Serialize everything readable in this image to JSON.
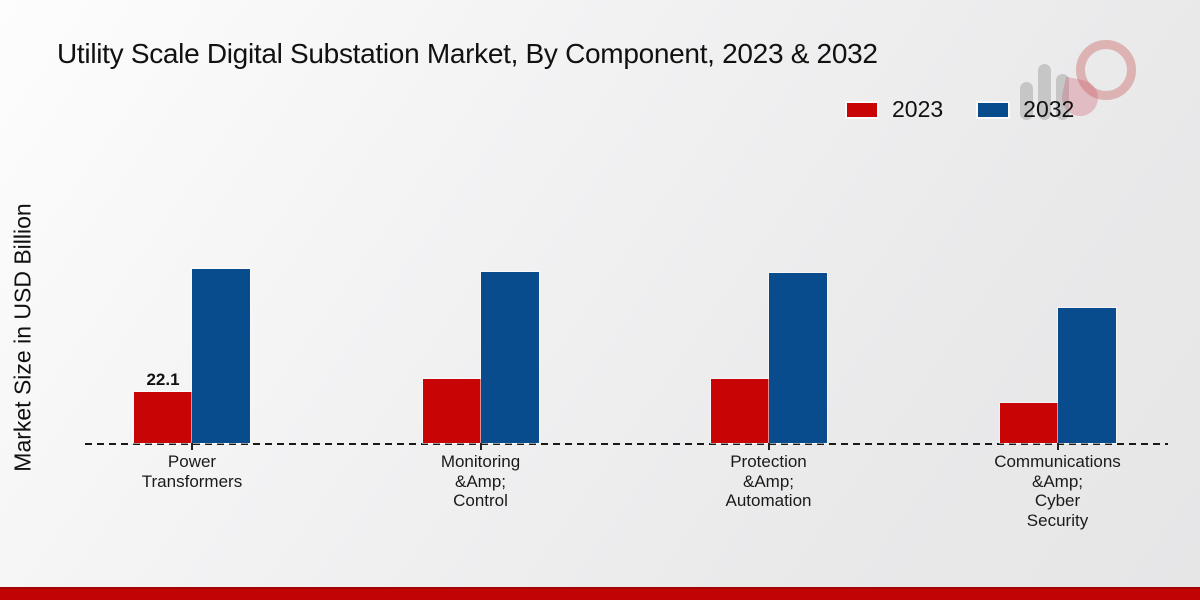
{
  "page": {
    "footer_bar_color": "#c00404",
    "background_color": "#ebebec",
    "baseline_style": "dashed",
    "baseline_color": "#1a1a1a"
  },
  "icons": {
    "watermark": "brand-logo-watermark (gray bar-chart strokes with red ring and red petal)"
  },
  "legend": {
    "position": "top-right",
    "items": [
      {
        "label": "2023",
        "color": "#c90404"
      },
      {
        "label": "2032",
        "color": "#084c8d"
      }
    ]
  },
  "chart_data": {
    "type": "bar",
    "title": "Utility Scale Digital Substation Market, By Component, 2023 & 2032",
    "xlabel": "",
    "ylabel": "Market Size in USD Billion",
    "ylim": [
      0,
      80
    ],
    "grid": false,
    "legend_position": "top-right",
    "categories": [
      "Power\nTransformers",
      "Monitoring\n&Amp;\nControl",
      "Protection\n&Amp;\nAutomation",
      "Communications\n&Amp;\nCyber\nSecurity"
    ],
    "series": [
      {
        "name": "2023",
        "color": "#c90404",
        "values": [
          22.1,
          27.7,
          27.7,
          17.3
        ],
        "data_labels": [
          "22.1",
          "",
          "",
          ""
        ]
      },
      {
        "name": "2032",
        "color": "#084c8d",
        "values": [
          75.4,
          74.1,
          73.7,
          58.5
        ],
        "data_labels": [
          "",
          "",
          "",
          ""
        ]
      }
    ]
  }
}
